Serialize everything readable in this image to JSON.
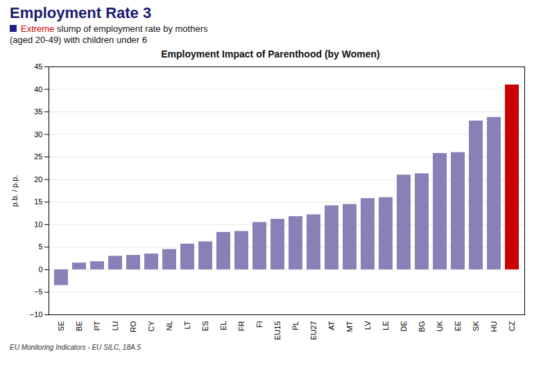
{
  "chart_data": {
    "type": "bar",
    "title": "Employment Rate 3",
    "subtitle": [
      "Extreme slump of employment rate by mothers",
      "(aged 20-49) with children under 6"
    ],
    "chart_title": "Employment Impact of Parenthood (by Women)",
    "ylabel": "p.b. / p.p.",
    "source": "EU Monitoring Indicators - EU SILC, 18A.5",
    "categories": [
      "SE",
      "BE",
      "PT",
      "LU",
      "RO",
      "CY",
      "NL",
      "LT",
      "ES",
      "EL",
      "FR",
      "FI",
      "EU15",
      "PL",
      "EU27",
      "AT",
      "MT",
      "LV",
      "LE",
      "DE",
      "BG",
      "UK",
      "EE",
      "SK",
      "HU",
      "CZ"
    ],
    "values": [
      -3.5,
      1.5,
      1.8,
      3.0,
      3.2,
      3.5,
      4.5,
      5.7,
      6.2,
      8.3,
      8.5,
      10.5,
      11.2,
      11.8,
      12.2,
      14.2,
      14.5,
      15.8,
      16.0,
      21.0,
      21.3,
      25.8,
      26.0,
      33.0,
      33.8,
      41.0
    ],
    "colors": [
      "#8B7FB8",
      "#8B7FB8",
      "#8B7FB8",
      "#8B7FB8",
      "#8B7FB8",
      "#8B7FB8",
      "#8B7FB8",
      "#8B7FB8",
      "#8B7FB8",
      "#8B7FB8",
      "#8B7FB8",
      "#8B7FB8",
      "#8B7FB8",
      "#8B7FB8",
      "#8B7FB8",
      "#8B7FB8",
      "#8B7FB8",
      "#8B7FB8",
      "#8B7FB8",
      "#8B7FB8",
      "#8B7FB8",
      "#8B7FB8",
      "#8B7FB8",
      "#8B7FB8",
      "#8B7FB8",
      "#CC0000"
    ],
    "ylim": [
      -10,
      45
    ],
    "yticks": [
      -10,
      -5,
      0,
      5,
      10,
      15,
      20,
      25,
      30,
      35,
      40,
      45
    ],
    "grid": true
  }
}
